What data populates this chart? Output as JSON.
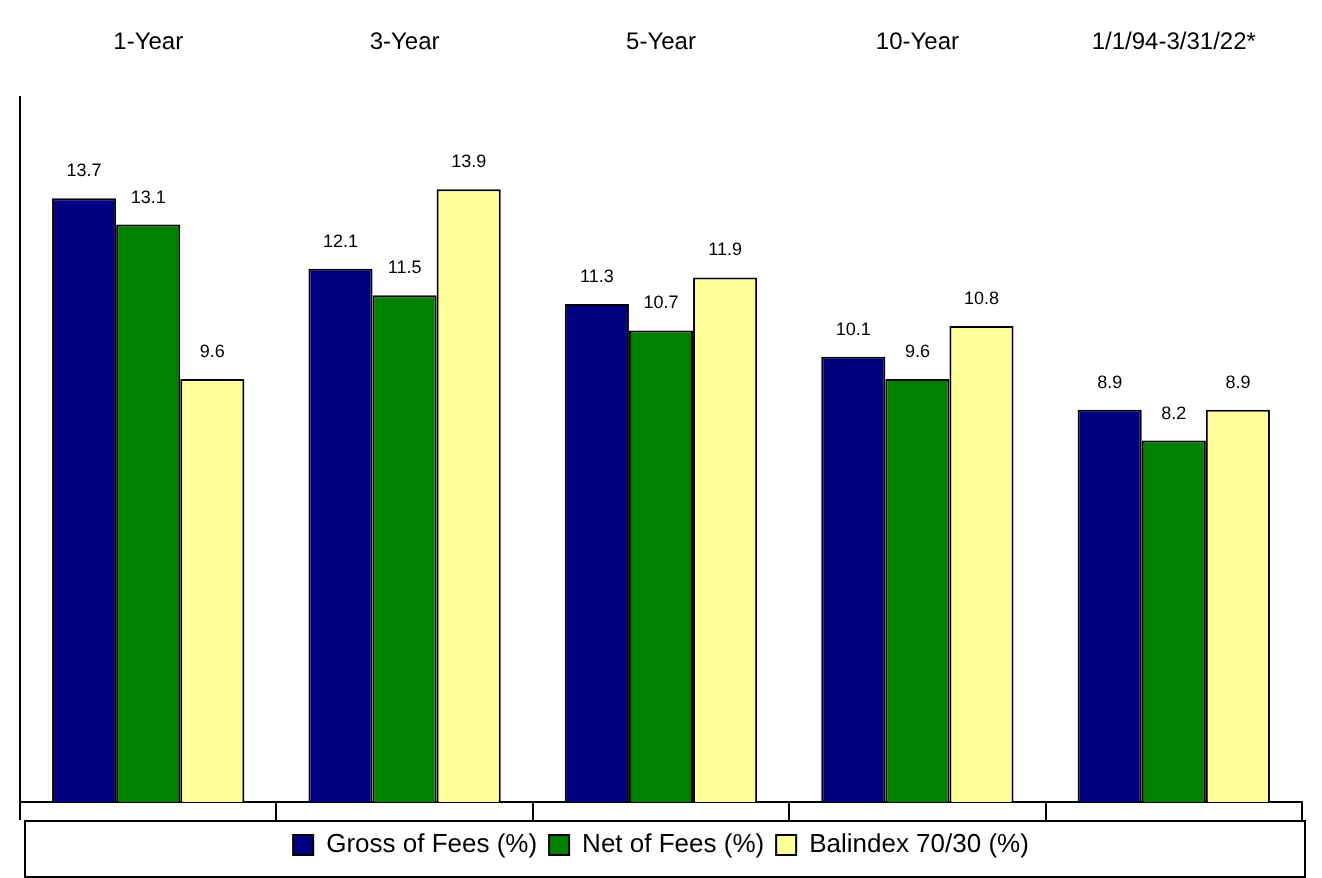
{
  "chart_data": {
    "type": "bar",
    "categories": [
      "1-Year",
      "3-Year",
      "5-Year",
      "10-Year",
      "1/1/94-3/31/22*"
    ],
    "series": [
      {
        "name": "Gross of Fees (%)",
        "color": "#000080",
        "values": [
          13.7,
          12.1,
          11.3,
          10.1,
          8.9
        ]
      },
      {
        "name": "Net of Fees (%)",
        "color": "#008000",
        "values": [
          13.1,
          11.5,
          10.7,
          9.6,
          8.2
        ]
      },
      {
        "name": "Balindex 70/30 (%)",
        "color": "#ffff99",
        "values": [
          9.6,
          13.9,
          11.9,
          10.8,
          8.9
        ]
      }
    ],
    "ylim": [
      0,
      16
    ],
    "data_labels": true,
    "legend": "bottom",
    "grid": false,
    "tick_labels": "x"
  }
}
